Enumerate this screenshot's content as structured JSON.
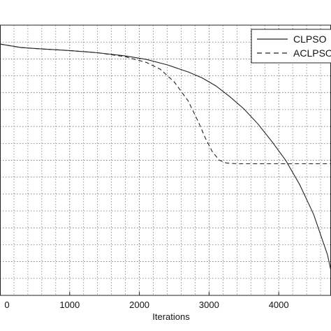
{
  "chart_data": {
    "type": "line",
    "xlabel": "Iterations",
    "ylabel": "",
    "title": "",
    "xlim": [
      0,
      4750
    ],
    "xticks": [
      0,
      1000,
      2000,
      3000,
      4000
    ],
    "xtick_labels": [
      "0",
      "1000",
      "2000",
      "3000",
      "4000"
    ],
    "ylim": [
      0,
      1
    ],
    "y_values_note": "",
    "grid": "on (dotted, major and minor)",
    "legend": "top-right",
    "series": [
      {
        "name": "CLPSO",
        "style": "solid",
        "color": "#222222",
        "x": [
          0,
          300,
          600,
          1000,
          1400,
          1800,
          2100,
          2400,
          2700,
          2900,
          3100,
          3300,
          3500,
          3700,
          3900,
          4100,
          4300,
          4500,
          4700,
          4750
        ],
        "y": [
          0.93,
          0.917,
          0.912,
          0.906,
          0.898,
          0.886,
          0.873,
          0.853,
          0.827,
          0.805,
          0.775,
          0.735,
          0.69,
          0.635,
          0.57,
          0.5,
          0.41,
          0.3,
          0.15,
          0.09
        ]
      },
      {
        "name": "ACLPSO",
        "style": "dashed",
        "color": "#222222",
        "x": [
          0,
          300,
          600,
          1000,
          1400,
          1800,
          2100,
          2300,
          2500,
          2700,
          2850,
          2950,
          3050,
          3150,
          3250,
          3400,
          3600,
          4000,
          4400,
          4750
        ],
        "y": [
          0.93,
          0.917,
          0.912,
          0.906,
          0.898,
          0.883,
          0.862,
          0.837,
          0.79,
          0.72,
          0.64,
          0.58,
          0.53,
          0.5,
          0.49,
          0.487,
          0.487,
          0.487,
          0.487,
          0.487
        ]
      }
    ]
  }
}
